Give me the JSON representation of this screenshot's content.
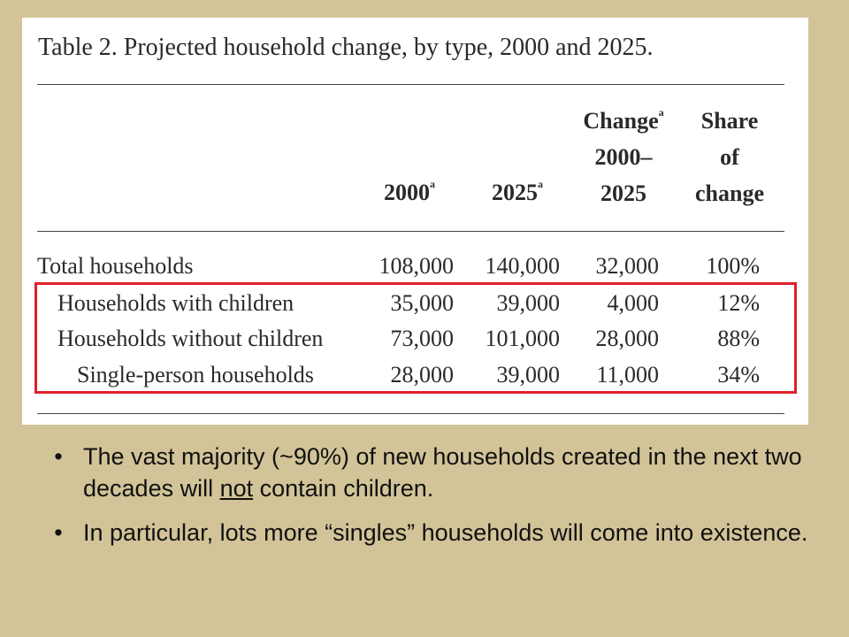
{
  "table": {
    "title": "Table 2. Projected household change, by type, 2000 and 2025.",
    "headers": {
      "col_2000": "2000",
      "col_2000_note": "a",
      "col_2025": "2025",
      "col_2025_note": "a",
      "col_change_line1": "Change",
      "col_change_note": "a",
      "col_change_line2": "2000–",
      "col_change_line3": "2025",
      "col_share_line1": "Share",
      "col_share_line2": "of",
      "col_share_line3": "change"
    },
    "rows": [
      {
        "label": "Total households",
        "v2000": "108,000",
        "v2025": "140,000",
        "change": "32,000",
        "share": "100%"
      },
      {
        "label": "Households with children",
        "v2000": "35,000",
        "v2025": "39,000",
        "change": "4,000",
        "share": "12%"
      },
      {
        "label": "Households without children",
        "v2000": "73,000",
        "v2025": "101,000",
        "change": "28,000",
        "share": "88%"
      },
      {
        "label": "Single-person households",
        "v2000": "28,000",
        "v2025": "39,000",
        "change": "11,000",
        "share": "34%"
      }
    ]
  },
  "bullets": {
    "marker": "•",
    "item1_before": "The vast majority (~90%) of new households created in the next two decades will ",
    "item1_emphasis": "not",
    "item1_after": " contain children.",
    "item2": "In particular, lots more “singles” households will come into existence."
  },
  "colors": {
    "slide_background": "#d2c498",
    "highlight_border": "#e0202a"
  }
}
